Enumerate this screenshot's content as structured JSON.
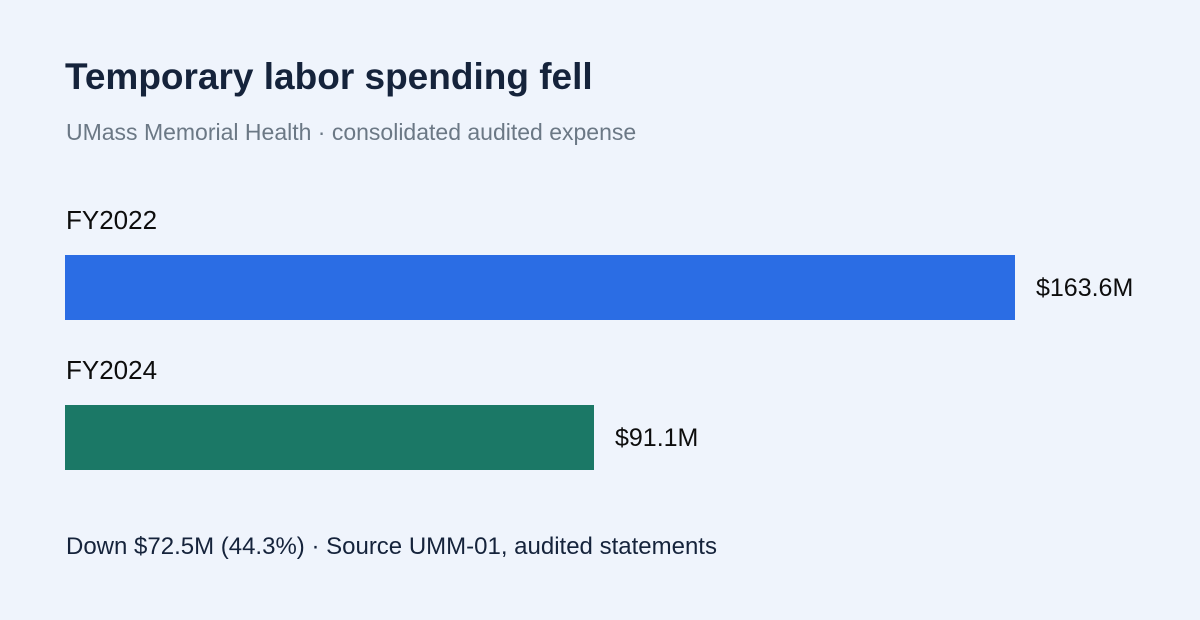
{
  "chart_data": {
    "type": "bar",
    "orientation": "horizontal",
    "title": "Temporary labor spending fell",
    "subtitle": "UMass Memorial Health · consolidated audited expense",
    "categories": [
      "FY2022",
      "FY2024"
    ],
    "values": [
      163.6,
      91.1
    ],
    "value_labels": [
      "$163.6M",
      "$91.1M"
    ],
    "colors": [
      "#2b6de4",
      "#1b7866"
    ],
    "xlim": [
      0,
      163.6
    ],
    "grid": false,
    "legend": "none",
    "footnote": "Down $72.5M (44.3%) · Source UMM-01, audited statements"
  }
}
